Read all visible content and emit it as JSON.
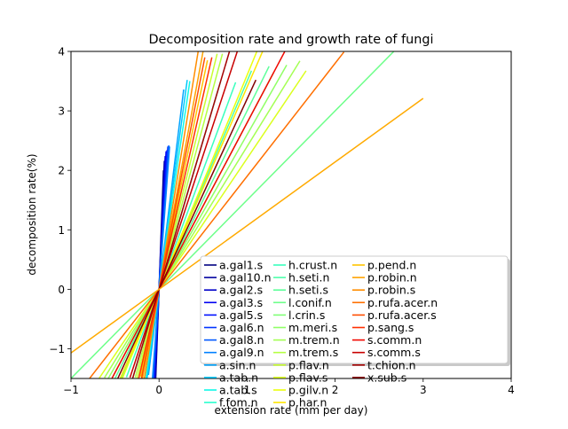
{
  "chart_data": {
    "type": "line",
    "title": "Decomposition rate and growth rate of fungi",
    "xlabel": "extension rate (mm per day)",
    "ylabel": "decomposition rate(%)",
    "xlim": [
      -1,
      4
    ],
    "ylim": [
      -1.5,
      4
    ],
    "xticks": [
      -1,
      0,
      1,
      2,
      3,
      4
    ],
    "yticks": [
      -1,
      0,
      1,
      2,
      3,
      4
    ],
    "x_tick_labels": [
      "−1",
      "0",
      "1",
      "2",
      "3",
      "4"
    ],
    "y_tick_labels": [
      "−1",
      "0",
      "1",
      "2",
      "3",
      "4"
    ],
    "grid": false,
    "legend": {
      "placement": "lower-right",
      "columns": 3
    },
    "series": [
      {
        "name": "a.gal1.s",
        "color": "#000080",
        "slope": 40.0,
        "x": [
          -0.05,
          0.05
        ]
      },
      {
        "name": "a.gal10.n",
        "color": "#00009f",
        "slope": 36.0,
        "x": [
          -0.05,
          0.06
        ]
      },
      {
        "name": "a.gal2.s",
        "color": "#0000c8",
        "slope": 32.0,
        "x": [
          -0.05,
          0.07
        ]
      },
      {
        "name": "a.gal3.s",
        "color": "#0000f1",
        "slope": 29.0,
        "x": [
          -0.06,
          0.08
        ]
      },
      {
        "name": "a.gal5.s",
        "color": "#0010ff",
        "slope": 26.0,
        "x": [
          -0.06,
          0.09
        ]
      },
      {
        "name": "a.gal6.n",
        "color": "#0034ff",
        "slope": 24.0,
        "x": [
          -0.07,
          0.1
        ]
      },
      {
        "name": "a.gal8.n",
        "color": "#0058ff",
        "slope": 22.0,
        "x": [
          -0.07,
          0.11
        ]
      },
      {
        "name": "a.gal9.n",
        "color": "#0080ff",
        "slope": 20.0,
        "x": [
          -0.08,
          0.12
        ]
      },
      {
        "name": "a.sin.n",
        "color": "#00a4ff",
        "slope": 12.0,
        "x": [
          -0.12,
          0.28
        ]
      },
      {
        "name": "a.tab.n",
        "color": "#00c8fc",
        "slope": 11.0,
        "x": [
          -0.14,
          0.32
        ]
      },
      {
        "name": "a.tab.s",
        "color": "#0ff8e7",
        "slope": 10.0,
        "x": [
          -0.15,
          0.35
        ]
      },
      {
        "name": "f.fom.n",
        "color": "#29ffce",
        "slope": 5.0,
        "x": [
          -0.3,
          0.7
        ]
      },
      {
        "name": "h.crust.n",
        "color": "#39ffbd",
        "slope": 4.0,
        "x": [
          -0.37,
          0.87
        ]
      },
      {
        "name": "h.seti.n",
        "color": "#4dffaa",
        "slope": 3.5,
        "x": [
          -0.43,
          1.05
        ]
      },
      {
        "name": "h.seti.s",
        "color": "#5dff9a",
        "slope": 3.0,
        "x": [
          -0.5,
          1.25
        ]
      },
      {
        "name": "l.conif.n",
        "color": "#6dff8a",
        "slope": 1.5,
        "x": [
          -1,
          2.7
        ]
      },
      {
        "name": "l.crin.s",
        "color": "#80ff77",
        "slope": 2.8,
        "x": [
          -0.54,
          1.3
        ]
      },
      {
        "name": "m.meri.s",
        "color": "#90ff66",
        "slope": 2.6,
        "x": [
          -0.58,
          1.45
        ]
      },
      {
        "name": "m.trem.n",
        "color": "#a4ff53",
        "slope": 2.4,
        "x": [
          -0.62,
          1.6
        ]
      },
      {
        "name": "m.trem.s",
        "color": "#b4ff43",
        "slope": 5.5,
        "x": [
          -0.27,
          0.72
        ]
      },
      {
        "name": "p.flav.n",
        "color": "#c8ff30",
        "slope": 6.0,
        "x": [
          -0.25,
          0.66
        ]
      },
      {
        "name": "p.flav.s",
        "color": "#dbff1c",
        "slope": 2.2,
        "x": [
          -0.68,
          1.67
        ]
      },
      {
        "name": "p.gilv.n",
        "color": "#ebff0c",
        "slope": 3.6,
        "x": [
          -0.42,
          1.15
        ]
      },
      {
        "name": "p.har.n",
        "color": "#ffe600",
        "slope": 3.4,
        "x": [
          -0.44,
          1.2
        ]
      },
      {
        "name": "p.pend.n",
        "color": "#ffc400",
        "slope": 7.0,
        "x": [
          -0.21,
          0.55
        ]
      },
      {
        "name": "p.robin.n",
        "color": "#ffa300",
        "slope": 8.0,
        "x": [
          -0.19,
          0.5
        ]
      },
      {
        "name": "p.robin.s",
        "color": "#ff8d00",
        "slope": 9.0,
        "x": [
          -0.17,
          0.45
        ]
      },
      {
        "name": "p.rufa.acer.n",
        "color": "#ff6f00",
        "slope": 1.9,
        "x": [
          -0.8,
          2.1
        ]
      },
      {
        "name": "p.rufa.acer.s",
        "color": "#ff4e00",
        "slope": 7.5,
        "x": [
          -0.2,
          0.52
        ]
      },
      {
        "name": "p.sang.s",
        "color": "#ff3000",
        "slope": 6.5,
        "x": [
          -0.23,
          0.6
        ]
      },
      {
        "name": "s.comm.n",
        "color": "#f10800",
        "slope": 2.8,
        "x": [
          -0.54,
          1.48
        ]
      },
      {
        "name": "s.comm.s",
        "color": "#c80000",
        "slope": 4.5,
        "x": [
          -0.33,
          0.9
        ]
      },
      {
        "name": "t.chion.n",
        "color": "#a40000",
        "slope": 5.0,
        "x": [
          -0.3,
          0.8
        ]
      },
      {
        "name": "x.sub.s",
        "color": "#800000",
        "slope": 3.2,
        "x": [
          -0.47,
          1.1
        ]
      },
      {
        "name": "",
        "color": "#ffaa00",
        "slope": 1.07,
        "x": [
          -1,
          3
        ]
      }
    ]
  }
}
